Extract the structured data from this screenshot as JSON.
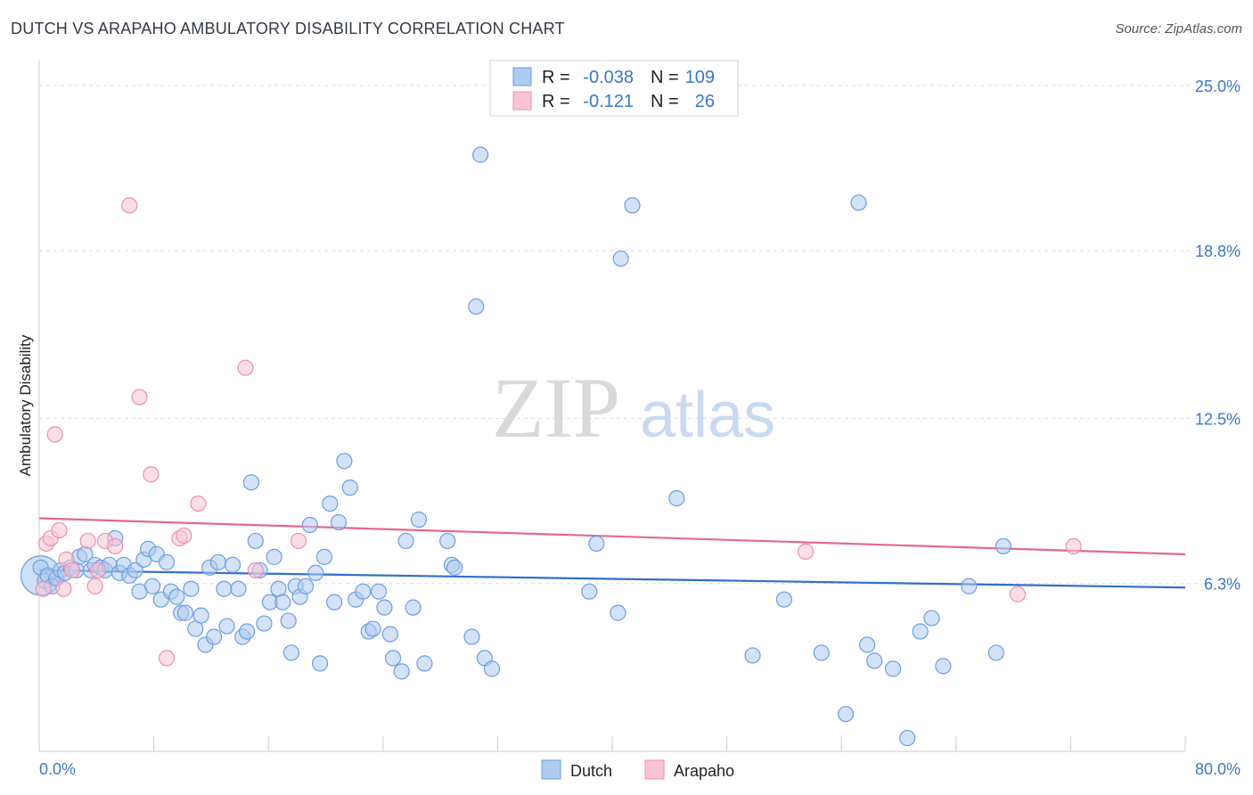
{
  "title": "DUTCH VS ARAPAHO AMBULATORY DISABILITY CORRELATION CHART",
  "source": "Source: ZipAtlas.com",
  "watermark": {
    "zip": "ZIP",
    "atlas": "atlas"
  },
  "colors": {
    "dutch_fill": "#aecbf1",
    "dutch_stroke": "#6c9ee0",
    "dutch_line": "#2f6fce",
    "arapaho_fill": "#f8c4d4",
    "arapaho_stroke": "#ee8fae",
    "arapaho_line": "#e5688f",
    "tick_label": "#3a78c8",
    "grid": "#dddddd"
  },
  "legend": {
    "rows": [
      {
        "r_label": "R =",
        "r_value": "-0.038",
        "n_label": "N =",
        "n_value": "109"
      },
      {
        "r_label": "R =",
        "r_value": "-0.121",
        "n_label": "N =",
        "n_value": "26"
      }
    ]
  },
  "bottom_legend": [
    "Dutch",
    "Arapaho"
  ],
  "chart_data": {
    "type": "scatter",
    "title": "DUTCH VS ARAPAHO AMBULATORY DISABILITY CORRELATION CHART",
    "xlabel": "",
    "ylabel": "Ambulatory Disability",
    "xlim": [
      0,
      80
    ],
    "ylim": [
      0,
      25.6
    ],
    "x_tick_labels": [
      "0.0%",
      "80.0%"
    ],
    "y_ticks": [
      6.3,
      12.5,
      18.8,
      25.0
    ],
    "y_tick_labels": [
      "6.3%",
      "12.5%",
      "18.8%",
      "25.0%"
    ],
    "grid": "horizontal dashed",
    "legend_placement": "top-center",
    "series": [
      {
        "name": "Dutch",
        "r": -0.038,
        "n": 109,
        "trend": [
          [
            0,
            6.8
          ],
          [
            80,
            6.15
          ]
        ],
        "points": [
          [
            0.1,
            6.9
          ],
          [
            0.4,
            6.4
          ],
          [
            0.6,
            6.6
          ],
          [
            0.9,
            6.2
          ],
          [
            1.2,
            6.5
          ],
          [
            1.5,
            6.8
          ],
          [
            1.8,
            6.7
          ],
          [
            2.2,
            6.9
          ],
          [
            2.6,
            6.8
          ],
          [
            2.8,
            7.3
          ],
          [
            3.2,
            7.4
          ],
          [
            3.6,
            6.8
          ],
          [
            3.9,
            7.0
          ],
          [
            4.3,
            6.9
          ],
          [
            4.6,
            6.8
          ],
          [
            4.9,
            7.0
          ],
          [
            5.3,
            8.0
          ],
          [
            5.6,
            6.7
          ],
          [
            5.9,
            7.0
          ],
          [
            6.3,
            6.6
          ],
          [
            6.7,
            6.8
          ],
          [
            7.0,
            6.0
          ],
          [
            7.3,
            7.2
          ],
          [
            7.6,
            7.6
          ],
          [
            7.9,
            6.2
          ],
          [
            8.2,
            7.4
          ],
          [
            8.5,
            5.7
          ],
          [
            8.9,
            7.1
          ],
          [
            9.2,
            6.0
          ],
          [
            9.6,
            5.8
          ],
          [
            9.9,
            5.2
          ],
          [
            10.2,
            5.2
          ],
          [
            10.6,
            6.1
          ],
          [
            10.9,
            4.6
          ],
          [
            11.3,
            5.1
          ],
          [
            11.6,
            4.0
          ],
          [
            11.9,
            6.9
          ],
          [
            12.2,
            4.3
          ],
          [
            12.5,
            7.1
          ],
          [
            12.9,
            6.1
          ],
          [
            13.1,
            4.7
          ],
          [
            13.5,
            7.0
          ],
          [
            13.9,
            6.1
          ],
          [
            14.2,
            4.3
          ],
          [
            14.5,
            4.5
          ],
          [
            14.8,
            10.1
          ],
          [
            15.1,
            7.9
          ],
          [
            15.4,
            6.8
          ],
          [
            15.7,
            4.8
          ],
          [
            16.1,
            5.6
          ],
          [
            16.4,
            7.3
          ],
          [
            16.7,
            6.1
          ],
          [
            17.0,
            5.6
          ],
          [
            17.4,
            4.9
          ],
          [
            17.6,
            3.7
          ],
          [
            17.9,
            6.2
          ],
          [
            18.2,
            5.8
          ],
          [
            18.6,
            6.2
          ],
          [
            18.9,
            8.5
          ],
          [
            19.3,
            6.7
          ],
          [
            19.6,
            3.3
          ],
          [
            19.9,
            7.3
          ],
          [
            20.3,
            9.3
          ],
          [
            20.6,
            5.6
          ],
          [
            20.9,
            8.6
          ],
          [
            21.3,
            10.9
          ],
          [
            21.7,
            9.9
          ],
          [
            22.1,
            5.7
          ],
          [
            22.6,
            6.0
          ],
          [
            23.0,
            4.5
          ],
          [
            23.3,
            4.6
          ],
          [
            23.7,
            6.0
          ],
          [
            24.1,
            5.4
          ],
          [
            24.5,
            4.4
          ],
          [
            24.7,
            3.5
          ],
          [
            25.3,
            3.0
          ],
          [
            25.6,
            7.9
          ],
          [
            26.1,
            5.4
          ],
          [
            26.5,
            8.7
          ],
          [
            26.9,
            3.3
          ],
          [
            28.5,
            7.9
          ],
          [
            28.8,
            7.0
          ],
          [
            29.0,
            6.9
          ],
          [
            30.2,
            4.3
          ],
          [
            31.1,
            3.5
          ],
          [
            31.6,
            3.1
          ],
          [
            30.5,
            16.7
          ],
          [
            38.4,
            6.0
          ],
          [
            38.9,
            7.8
          ],
          [
            40.4,
            5.2
          ],
          [
            41.4,
            20.5
          ],
          [
            40.6,
            18.5
          ],
          [
            44.5,
            9.5
          ],
          [
            49.8,
            3.6
          ],
          [
            52.0,
            5.7
          ],
          [
            54.6,
            3.7
          ],
          [
            56.3,
            1.4
          ],
          [
            57.2,
            20.6
          ],
          [
            57.8,
            4.0
          ],
          [
            58.3,
            3.4
          ],
          [
            59.6,
            3.1
          ],
          [
            60.6,
            0.5
          ],
          [
            61.5,
            4.5
          ],
          [
            62.3,
            5.0
          ],
          [
            63.1,
            3.2
          ],
          [
            64.9,
            6.2
          ],
          [
            66.8,
            3.7
          ],
          [
            67.3,
            7.7
          ],
          [
            30.8,
            22.4
          ]
        ]
      },
      {
        "name": "Arapaho",
        "r": -0.121,
        "n": 26,
        "trend": [
          [
            0,
            8.75
          ],
          [
            80,
            7.4
          ]
        ],
        "points": [
          [
            0.3,
            6.1
          ],
          [
            0.5,
            7.8
          ],
          [
            0.8,
            8.0
          ],
          [
            1.1,
            11.9
          ],
          [
            1.4,
            8.3
          ],
          [
            1.7,
            6.1
          ],
          [
            1.9,
            7.2
          ],
          [
            2.3,
            6.8
          ],
          [
            3.4,
            7.9
          ],
          [
            3.9,
            6.2
          ],
          [
            4.1,
            6.8
          ],
          [
            4.6,
            7.9
          ],
          [
            5.3,
            7.7
          ],
          [
            6.3,
            20.5
          ],
          [
            7.0,
            13.3
          ],
          [
            7.8,
            10.4
          ],
          [
            8.9,
            3.5
          ],
          [
            9.8,
            8.0
          ],
          [
            10.1,
            8.1
          ],
          [
            11.1,
            9.3
          ],
          [
            14.4,
            14.4
          ],
          [
            15.1,
            6.8
          ],
          [
            18.1,
            7.9
          ],
          [
            53.5,
            7.5
          ],
          [
            68.3,
            5.9
          ],
          [
            72.2,
            7.7
          ]
        ]
      }
    ]
  }
}
